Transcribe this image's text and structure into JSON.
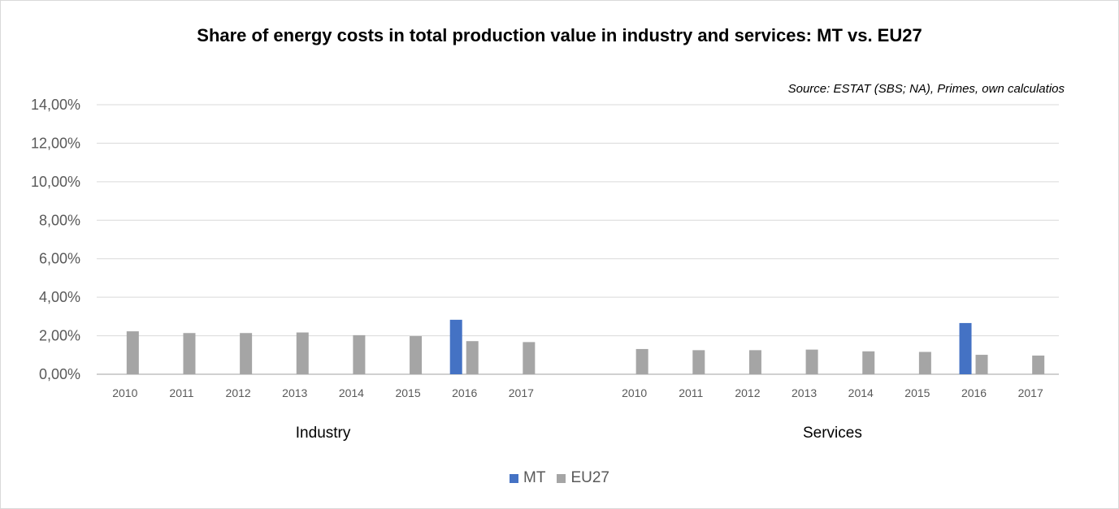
{
  "chart_data": {
    "type": "bar",
    "title": "Share of energy costs in total production value in industry and services: MT vs. EU27",
    "annotation": "Source: ESTAT (SBS; NA), Primes, own calculatios",
    "ylim": [
      0,
      14
    ],
    "yticks": [
      "0,00%",
      "2,00%",
      "4,00%",
      "6,00%",
      "8,00%",
      "10,00%",
      "12,00%",
      "14,00%"
    ],
    "grid": true,
    "legend_position": "bottom",
    "groups": [
      {
        "label": "Industry",
        "categories": [
          "2010",
          "2011",
          "2012",
          "2013",
          "2014",
          "2015",
          "2016",
          "2017"
        ]
      },
      {
        "label": "Services",
        "categories": [
          "2010",
          "2011",
          "2012",
          "2013",
          "2014",
          "2015",
          "2016",
          "2017"
        ]
      }
    ],
    "series": [
      {
        "name": "MT",
        "color": "#4472C4",
        "values": [
          [
            null,
            null,
            null,
            null,
            null,
            null,
            2.83,
            null
          ],
          [
            null,
            null,
            null,
            null,
            null,
            null,
            2.66,
            null
          ]
        ]
      },
      {
        "name": "EU27",
        "color": "#A5A5A5",
        "values": [
          [
            2.23,
            2.14,
            2.14,
            2.17,
            2.03,
            1.98,
            1.72,
            1.67
          ],
          [
            1.31,
            1.25,
            1.25,
            1.28,
            1.19,
            1.16,
            1.01,
            0.97
          ]
        ]
      }
    ]
  }
}
